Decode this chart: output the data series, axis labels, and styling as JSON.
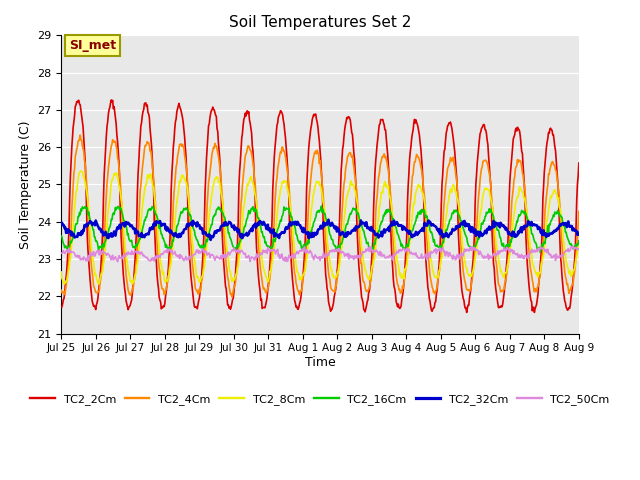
{
  "title": "Soil Temperatures Set 2",
  "ylabel": "Soil Temperature (C)",
  "xlabel": "Time",
  "ylim": [
    21.0,
    29.0
  ],
  "yticks": [
    21.0,
    22.0,
    23.0,
    24.0,
    25.0,
    26.0,
    27.0,
    28.0,
    29.0
  ],
  "bg_color": "#e8e8e8",
  "annotation_text": "SI_met",
  "annotation_fg": "#8b0000",
  "annotation_bg": "#ffff99",
  "annotation_border": "#999900",
  "lines": [
    {
      "name": "TC2_2Cm",
      "color": "#dd0000",
      "lw": 1.2
    },
    {
      "name": "TC2_4Cm",
      "color": "#ff8800",
      "lw": 1.2
    },
    {
      "name": "TC2_8Cm",
      "color": "#eeee00",
      "lw": 1.2
    },
    {
      "name": "TC2_16Cm",
      "color": "#00cc00",
      "lw": 1.2
    },
    {
      "name": "TC2_32Cm",
      "color": "#0000cc",
      "lw": 1.8
    },
    {
      "name": "TC2_50Cm",
      "color": "#dd88dd",
      "lw": 1.2
    }
  ],
  "xtick_labels": [
    "Jul 25",
    "Jul 26",
    "Jul 27",
    "Jul 28",
    "Jul 29",
    "Jul 30",
    "Jul 31",
    "Aug 1",
    "Aug 2",
    "Aug 3",
    "Aug 4",
    "Aug 5",
    "Aug 6",
    "Aug 7",
    "Aug 8",
    "Aug 9"
  ],
  "n_days": 15.33,
  "ppd": 48,
  "series": [
    {
      "name": "TC2_2Cm",
      "base": 24.5,
      "amp0": 2.8,
      "amp1": 2.4,
      "phase": 0.0,
      "trend": -0.03,
      "sharpness": 0.65
    },
    {
      "name": "TC2_4Cm",
      "base": 24.15,
      "amp0": 2.1,
      "amp1": 1.7,
      "phase": 0.35,
      "trend": -0.02,
      "sharpness": 0.75
    },
    {
      "name": "TC2_8Cm",
      "base": 23.85,
      "amp0": 1.5,
      "amp1": 1.1,
      "phase": 0.65,
      "trend": -0.01,
      "sharpness": 0.82
    },
    {
      "name": "TC2_16Cm",
      "base": 23.85,
      "amp0": 0.55,
      "amp1": 0.48,
      "phase": 1.1,
      "trend": -0.005,
      "sharpness": 1.0
    },
    {
      "name": "TC2_32Cm",
      "base": 23.8,
      "amp0": 0.18,
      "amp1": 0.15,
      "phase": 2.6,
      "trend": 0.0,
      "sharpness": 1.0
    },
    {
      "name": "TC2_50Cm",
      "base": 23.1,
      "amp0": 0.1,
      "amp1": 0.12,
      "phase": 4.2,
      "trend": 0.005,
      "sharpness": 1.0
    }
  ]
}
